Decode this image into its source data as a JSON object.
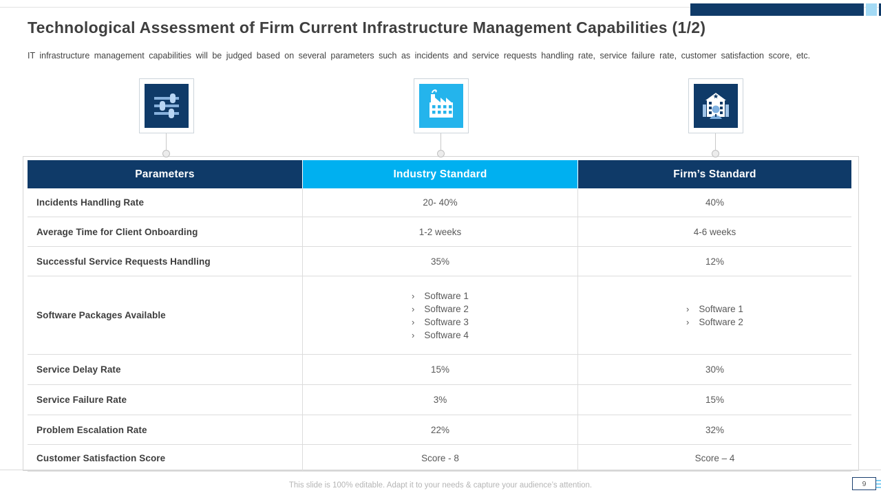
{
  "slide": {
    "title": "Technological Assessment of Firm Current Infrastructure Management Capabilities (1/2)",
    "subtitle": "IT infrastructure management capabilities will be judged based on several parameters such as incidents and service requests handling rate, service failure rate, customer satisfaction score, etc.",
    "footer": "This slide is 100% editable. Adapt it to your needs & capture your audience’s attention.",
    "page_number": "9"
  },
  "icons": [
    {
      "name": "sliders-icon",
      "background": "#0f3a68"
    },
    {
      "name": "factory-icon",
      "background": "#24b4ec"
    },
    {
      "name": "building-person-icon",
      "background": "#0f3a68"
    }
  ],
  "table": {
    "columns": [
      {
        "label": "Parameters",
        "background": "#0f3a68"
      },
      {
        "label": "Industry Standard",
        "background": "#00b0f0"
      },
      {
        "label": "Firm’s Standard",
        "background": "#0f3a68"
      }
    ],
    "bullet_char": "›",
    "rows": [
      {
        "parameter": "Incidents Handling Rate",
        "industry": "20- 40%",
        "firm": "40%"
      },
      {
        "parameter": "Average Time for Client Onboarding",
        "industry": "1-2 weeks",
        "firm": "4-6 weeks"
      },
      {
        "parameter": "Successful Service Requests Handling",
        "industry": "35%",
        "firm": "12%"
      },
      {
        "parameter": "Software Packages Available",
        "industry_list": [
          "Software 1",
          "Software 2",
          "Software 3",
          "Software 4"
        ],
        "firm_list": [
          "Software 1",
          "Software 2"
        ]
      },
      {
        "parameter": "Service Delay Rate",
        "industry": "15%",
        "firm": "30%"
      },
      {
        "parameter": "Service Failure Rate",
        "industry": "3%",
        "firm": "15%"
      },
      {
        "parameter": "Problem Escalation Rate",
        "industry": "22%",
        "firm": "32%"
      },
      {
        "parameter": "Customer Satisfaction Score",
        "industry": "Score - 8",
        "firm": "Score – 4"
      }
    ]
  },
  "colors": {
    "navy": "#0f3a68",
    "cyan": "#00b0f0",
    "light_blue": "#a3daf5",
    "title_text": "#3f3f3f",
    "value_text": "#595959",
    "border": "#dcdcdc",
    "footer_text": "#b5b5b5"
  }
}
